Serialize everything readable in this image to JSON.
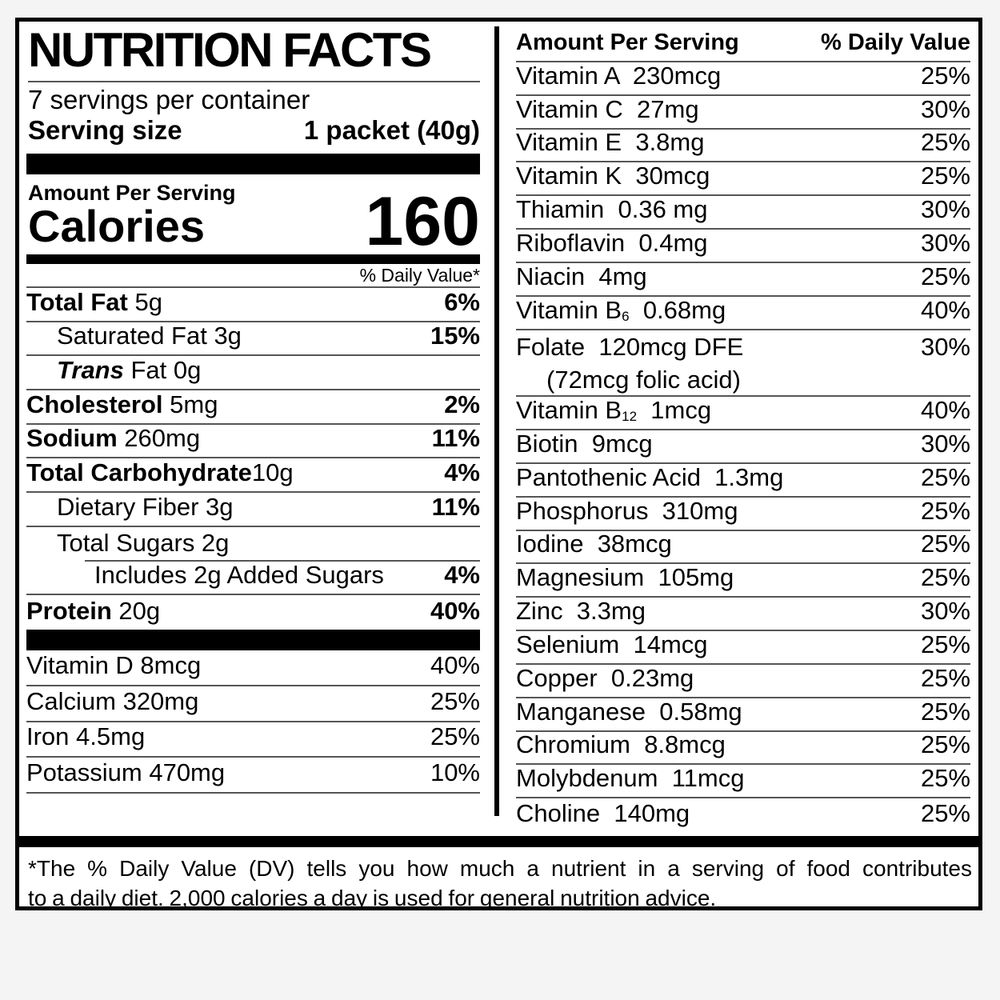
{
  "colors": {
    "bg": "#f4f4f5",
    "paper": "#ffffff",
    "ink": "#000000",
    "sep": "#555555"
  },
  "header": {
    "title": "NUTRITION FACTS",
    "servings_per_container": "7 servings per container",
    "serving_size_label": "Serving size",
    "serving_size_value": "1 packet (40g)",
    "amount_per_serving": "Amount Per Serving",
    "calories_label": "Calories",
    "calories_value": "160",
    "daily_value_note": "% Daily Value*"
  },
  "left": {
    "rows": [
      {
        "b": "Total Fat",
        "r": " 5g",
        "dv": "6%",
        "dvb": true,
        "ind": 0,
        "sep": "full"
      },
      {
        "b": "",
        "r": "Saturated Fat 3g",
        "dv": "15%",
        "dvb": true,
        "ind": 1,
        "sep": "full"
      },
      {
        "b": "Trans",
        "it": true,
        "r": " Fat 0g",
        "dv": "",
        "dvb": false,
        "ind": 1,
        "sep": "full"
      },
      {
        "b": "Cholesterol",
        "r": " 5mg",
        "dv": "2%",
        "dvb": true,
        "ind": 0,
        "sep": "full"
      },
      {
        "b": "Sodium",
        "r": " 260mg",
        "dv": "11%",
        "dvb": true,
        "ind": 0,
        "sep": "full"
      },
      {
        "b": "Total Carbohydrate",
        "r": "10g",
        "dv": "4%",
        "dvb": true,
        "ind": 0,
        "sep": "full"
      },
      {
        "b": "",
        "r": "Dietary Fiber 3g",
        "dv": "11%",
        "dvb": true,
        "ind": 1,
        "sep": "full"
      },
      {
        "b": "",
        "r": "Total Sugars 2g",
        "dv": "",
        "dvb": false,
        "ind": 1,
        "sep": "indent"
      },
      {
        "b": "",
        "r": "Includes 2g Added Sugars",
        "dv": "4%",
        "dvb": true,
        "ind": 2,
        "sep": "full"
      },
      {
        "b": "Protein",
        "r": " 20g",
        "dv": "40%",
        "dvb": true,
        "ind": 0,
        "sep": "none"
      }
    ],
    "vitamin_rows": [
      {
        "r": "Vitamin D 8mcg",
        "dv": "40%"
      },
      {
        "r": "Calcium 320mg",
        "dv": "25%"
      },
      {
        "r": "Iron 4.5mg",
        "dv": "25%"
      },
      {
        "r": "Potassium 470mg",
        "dv": "10%"
      }
    ]
  },
  "right": {
    "header_left": "Amount Per Serving",
    "header_right": "% Daily Value",
    "rows": [
      {
        "pre": "Vitamin A  230mcg",
        "dv": "25%"
      },
      {
        "pre": "Vitamin C  27mg",
        "dv": "30%"
      },
      {
        "pre": "Vitamin E  3.8mg",
        "dv": "25%"
      },
      {
        "pre": "Vitamin K  30mcg",
        "dv": "25%"
      },
      {
        "pre": "Thiamin  0.36 mg",
        "dv": "30%"
      },
      {
        "pre": "Riboflavin  0.4mg",
        "dv": "30%"
      },
      {
        "pre": "Niacin  4mg",
        "dv": "25%"
      },
      {
        "pre": "Vitamin B",
        "sub": "6",
        "post": "  0.68mg",
        "dv": "40%"
      },
      {
        "pre": "Folate  120mcg DFE",
        "line2": "(72mcg folic acid)",
        "dv": "30%"
      },
      {
        "pre": "Vitamin B",
        "sub": "12",
        "post": "  1mcg",
        "dv": "40%"
      },
      {
        "pre": "Biotin  9mcg",
        "dv": "30%"
      },
      {
        "pre": "Pantothenic Acid  1.3mg",
        "dv": "25%"
      },
      {
        "pre": "Phosphorus  310mg",
        "dv": "25%"
      },
      {
        "pre": "Iodine  38mcg",
        "dv": "25%"
      },
      {
        "pre": "Magnesium  105mg",
        "dv": "25%"
      },
      {
        "pre": "Zinc  3.3mg",
        "dv": "30%"
      },
      {
        "pre": "Selenium  14mcg",
        "dv": "25%"
      },
      {
        "pre": "Copper  0.23mg",
        "dv": "25%"
      },
      {
        "pre": "Manganese  0.58mg",
        "dv": "25%"
      },
      {
        "pre": "Chromium  8.8mcg",
        "dv": "25%"
      },
      {
        "pre": "Molybdenum  11mcg",
        "dv": "25%"
      },
      {
        "pre": "Choline  140mg",
        "dv": "25%"
      }
    ]
  },
  "footnote": {
    "line1": "*The % Daily Value (DV) tells you how much a nutrient in a serving of food contributes",
    "line2": "to a daily diet. 2,000 calories a day is used for general nutrition advice."
  }
}
